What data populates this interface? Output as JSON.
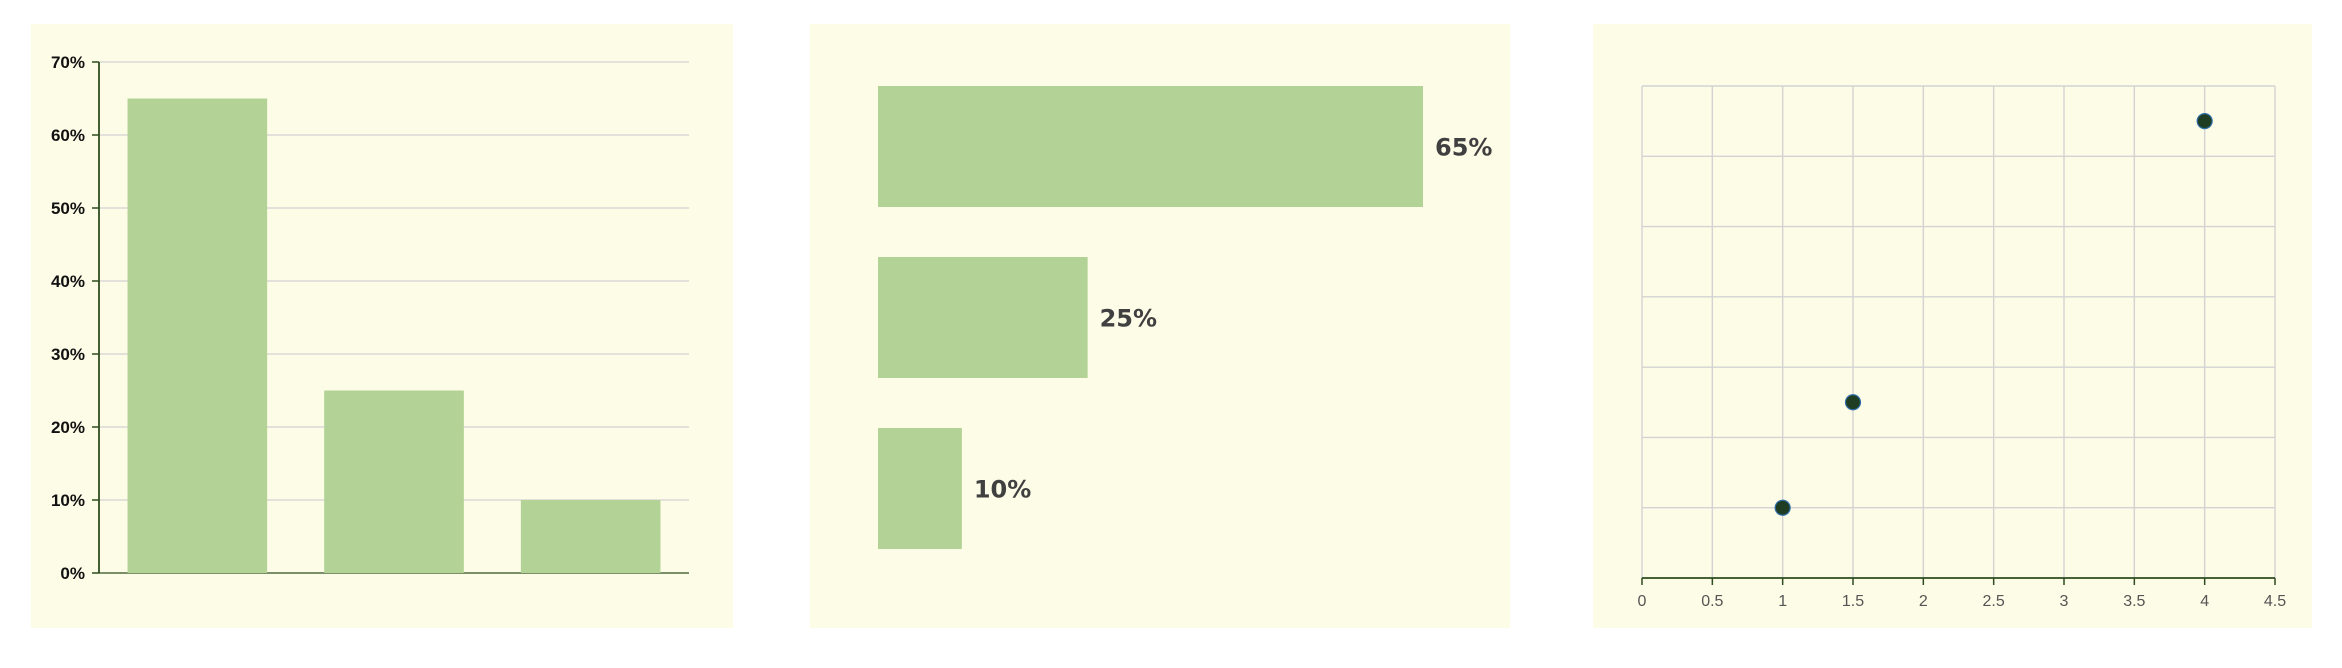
{
  "colors": {
    "panel_bg": "#fdfce7",
    "bar_fill": "#b3d296",
    "gridline": "#d3d3d3",
    "axis": "#2e4d1f",
    "point_fill": "#1e3d23",
    "point_stroke": "#2f6ea8"
  },
  "chart_data": [
    {
      "type": "bar",
      "orientation": "vertical",
      "categories": [
        "",
        "",
        ""
      ],
      "values": [
        65,
        25,
        10
      ],
      "ylim": [
        0,
        70
      ],
      "yticks": [
        "0%",
        "10%",
        "20%",
        "30%",
        "40%",
        "50%",
        "60%",
        "70%"
      ],
      "grid": "horizontal",
      "title": "",
      "xlabel": "",
      "ylabel": ""
    },
    {
      "type": "bar",
      "orientation": "horizontal",
      "values": [
        65,
        25,
        10
      ],
      "data_labels": [
        "65%",
        "25%",
        "10%"
      ],
      "xlim": [
        0,
        65
      ],
      "grid": "none",
      "title": ""
    },
    {
      "type": "scatter",
      "x": [
        1,
        1.5,
        4
      ],
      "y": [
        1,
        2.5,
        6.5
      ],
      "xlim": [
        0,
        4.5
      ],
      "ylim": [
        0,
        7
      ],
      "xticks": [
        "0",
        "0.5",
        "1",
        "1.5",
        "2",
        "2.5",
        "3",
        "3.5",
        "4",
        "4.5"
      ],
      "grid": "both",
      "title": "",
      "xlabel": "",
      "ylabel": ""
    }
  ]
}
